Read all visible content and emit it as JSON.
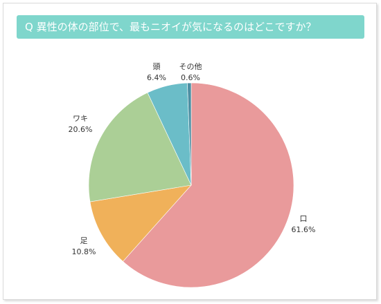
{
  "chart_data": {
    "type": "pie",
    "title": "Q  異性の体の部位で、最もニオイが気になるのはどこですか？",
    "slices": [
      {
        "label": "口",
        "value": 61.6,
        "value_label": "61.6%",
        "color": "#e99a9b"
      },
      {
        "label": "足",
        "value": 10.8,
        "value_label": "10.8%",
        "color": "#f0b15a"
      },
      {
        "label": "ワキ",
        "value": 20.6,
        "value_label": "20.6%",
        "color": "#abcf96"
      },
      {
        "label": "頭",
        "value": 6.4,
        "value_label": "6.4%",
        "color": "#6bbdc8"
      },
      {
        "label": "その他",
        "value": 0.6,
        "value_label": "0.6%",
        "color": "#4d8fa3"
      }
    ],
    "start": "12 o'clock",
    "direction": "clockwise",
    "legend": "none"
  },
  "colors": {
    "title_bar": "#7fd6cc",
    "title_text": "#ffffff"
  }
}
